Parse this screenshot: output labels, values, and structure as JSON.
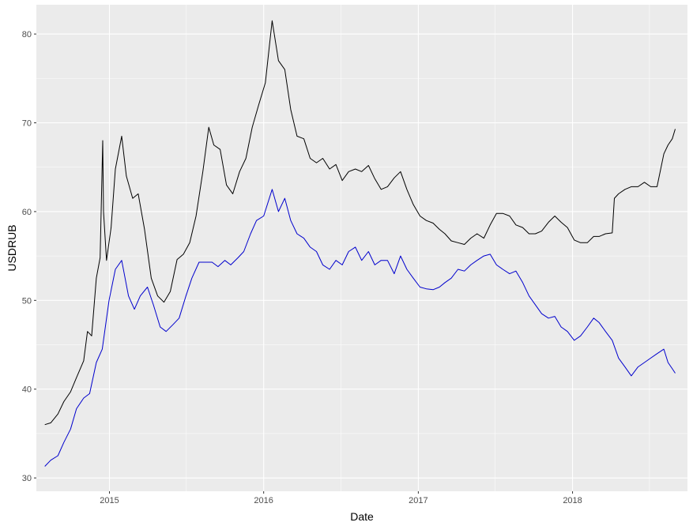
{
  "chart_data": {
    "type": "line",
    "title": "",
    "xlabel": "Date",
    "ylabel": "USDRUB",
    "grid": true,
    "legend": "none",
    "xlim": [
      "2014-07-12",
      "2018-09-30"
    ],
    "ylim": [
      28.5,
      83.3
    ],
    "x_ticks": [
      "2015-01-01",
      "2016-01-01",
      "2017-01-01",
      "2018-01-01"
    ],
    "x_tick_labels": [
      "2015",
      "2016",
      "2017",
      "2018"
    ],
    "y_ticks": [
      30,
      40,
      50,
      60,
      70,
      80
    ],
    "y_tick_labels": [
      "30",
      "40",
      "50",
      "60",
      "70",
      "80"
    ],
    "colors": {
      "panel": "#ebebeb",
      "grid": "#ffffff",
      "series_1": "#000000",
      "series_2": "#0000cd"
    },
    "series": [
      {
        "color": "#000000",
        "x": [
          "2014-08-01",
          "2014-08-15",
          "2014-09-01",
          "2014-09-15",
          "2014-10-01",
          "2014-10-15",
          "2014-11-01",
          "2014-11-10",
          "2014-11-20",
          "2014-12-01",
          "2014-12-10",
          "2014-12-16",
          "2014-12-18",
          "2014-12-25",
          "2015-01-05",
          "2015-01-15",
          "2015-01-30",
          "2015-02-10",
          "2015-02-25",
          "2015-03-10",
          "2015-03-25",
          "2015-04-10",
          "2015-04-25",
          "2015-05-10",
          "2015-05-25",
          "2015-06-10",
          "2015-06-25",
          "2015-07-10",
          "2015-07-25",
          "2015-08-10",
          "2015-08-24",
          "2015-09-05",
          "2015-09-20",
          "2015-10-05",
          "2015-10-20",
          "2015-11-05",
          "2015-11-20",
          "2015-12-05",
          "2015-12-20",
          "2016-01-05",
          "2016-01-21",
          "2016-02-05",
          "2016-02-20",
          "2016-03-05",
          "2016-03-20",
          "2016-04-05",
          "2016-04-20",
          "2016-05-05",
          "2016-05-20",
          "2016-06-05",
          "2016-06-20",
          "2016-07-05",
          "2016-07-20",
          "2016-08-05",
          "2016-08-20",
          "2016-09-05",
          "2016-09-20",
          "2016-10-05",
          "2016-10-20",
          "2016-11-05",
          "2016-11-20",
          "2016-12-05",
          "2016-12-20",
          "2017-01-05",
          "2017-01-20",
          "2017-02-05",
          "2017-02-20",
          "2017-03-05",
          "2017-03-20",
          "2017-04-05",
          "2017-04-20",
          "2017-05-05",
          "2017-05-20",
          "2017-06-05",
          "2017-06-20",
          "2017-07-05",
          "2017-07-20",
          "2017-08-05",
          "2017-08-20",
          "2017-09-05",
          "2017-09-20",
          "2017-10-05",
          "2017-10-20",
          "2017-11-05",
          "2017-11-20",
          "2017-12-05",
          "2017-12-20",
          "2018-01-05",
          "2018-01-20",
          "2018-02-05",
          "2018-02-20",
          "2018-03-05",
          "2018-03-20",
          "2018-04-05",
          "2018-04-10",
          "2018-04-20",
          "2018-05-05",
          "2018-05-20",
          "2018-06-05",
          "2018-06-20",
          "2018-07-05",
          "2018-07-20",
          "2018-08-05",
          "2018-08-15",
          "2018-08-25",
          "2018-09-01"
        ],
        "values": [
          36.0,
          36.2,
          37.2,
          38.6,
          39.7,
          41.3,
          43.2,
          46.5,
          46.0,
          52.5,
          54.8,
          68.0,
          60.0,
          54.5,
          58.2,
          64.8,
          68.5,
          64.0,
          61.5,
          62.0,
          58.0,
          52.5,
          50.5,
          49.8,
          51.0,
          54.6,
          55.2,
          56.5,
          59.5,
          64.5,
          69.5,
          67.5,
          67.0,
          63.0,
          62.0,
          64.5,
          66.0,
          69.5,
          72.0,
          74.5,
          81.5,
          77.0,
          76.0,
          71.5,
          68.5,
          68.2,
          66.0,
          65.5,
          66.0,
          64.8,
          65.3,
          63.5,
          64.5,
          64.8,
          64.5,
          65.2,
          63.7,
          62.5,
          62.8,
          63.8,
          64.5,
          62.5,
          60.8,
          59.5,
          59.0,
          58.7,
          58.0,
          57.5,
          56.7,
          56.5,
          56.3,
          57.0,
          57.5,
          57.0,
          58.5,
          59.8,
          59.8,
          59.5,
          58.5,
          58.2,
          57.5,
          57.5,
          57.8,
          58.8,
          59.5,
          58.8,
          58.2,
          56.8,
          56.5,
          56.5,
          57.2,
          57.2,
          57.5,
          57.6,
          61.5,
          62.0,
          62.5,
          62.8,
          62.8,
          63.3,
          62.8,
          62.8,
          66.5,
          67.5,
          68.2,
          69.3
        ]
      },
      {
        "color": "#0000cd",
        "x": [
          "2014-08-01",
          "2014-08-15",
          "2014-09-01",
          "2014-09-15",
          "2014-10-01",
          "2014-10-15",
          "2014-11-01",
          "2014-11-15",
          "2014-12-01",
          "2014-12-15",
          "2014-12-31",
          "2015-01-15",
          "2015-01-30",
          "2015-02-15",
          "2015-03-01",
          "2015-03-15",
          "2015-04-01",
          "2015-04-15",
          "2015-05-01",
          "2015-05-15",
          "2015-06-01",
          "2015-06-15",
          "2015-07-01",
          "2015-07-15",
          "2015-08-01",
          "2015-08-15",
          "2015-09-01",
          "2015-09-15",
          "2015-10-01",
          "2015-10-15",
          "2015-11-01",
          "2015-11-15",
          "2015-12-01",
          "2015-12-15",
          "2016-01-01",
          "2016-01-21",
          "2016-02-05",
          "2016-02-20",
          "2016-03-05",
          "2016-03-20",
          "2016-04-05",
          "2016-04-20",
          "2016-05-05",
          "2016-05-20",
          "2016-06-05",
          "2016-06-20",
          "2016-07-05",
          "2016-07-20",
          "2016-08-05",
          "2016-08-20",
          "2016-09-05",
          "2016-09-20",
          "2016-10-05",
          "2016-10-20",
          "2016-11-05",
          "2016-11-20",
          "2016-12-05",
          "2016-12-20",
          "2017-01-05",
          "2017-01-20",
          "2017-02-05",
          "2017-02-20",
          "2017-03-05",
          "2017-03-20",
          "2017-04-05",
          "2017-04-20",
          "2017-05-05",
          "2017-05-20",
          "2017-06-05",
          "2017-06-20",
          "2017-07-05",
          "2017-07-20",
          "2017-08-05",
          "2017-08-20",
          "2017-09-05",
          "2017-09-20",
          "2017-10-05",
          "2017-10-20",
          "2017-11-05",
          "2017-11-20",
          "2017-12-05",
          "2017-12-20",
          "2018-01-05",
          "2018-01-20",
          "2018-02-05",
          "2018-02-20",
          "2018-03-05",
          "2018-03-20",
          "2018-04-05",
          "2018-04-20",
          "2018-05-05",
          "2018-05-20",
          "2018-06-05",
          "2018-06-20",
          "2018-07-05",
          "2018-07-20",
          "2018-08-05",
          "2018-08-15",
          "2018-08-25",
          "2018-09-01"
        ],
        "values": [
          31.3,
          32.0,
          32.5,
          34.0,
          35.5,
          37.8,
          39.0,
          39.5,
          43.0,
          44.5,
          50.0,
          53.5,
          54.5,
          50.5,
          49.0,
          50.5,
          51.5,
          49.5,
          47.0,
          46.5,
          47.3,
          48.0,
          50.5,
          52.5,
          54.3,
          54.3,
          54.3,
          53.8,
          54.5,
          54.0,
          54.8,
          55.5,
          57.5,
          59.0,
          59.5,
          62.5,
          60.0,
          61.5,
          59.0,
          57.5,
          57.0,
          56.0,
          55.5,
          54.0,
          53.5,
          54.5,
          54.0,
          55.5,
          56.0,
          54.5,
          55.5,
          54.0,
          54.5,
          54.5,
          53.0,
          55.0,
          53.5,
          52.5,
          51.5,
          51.3,
          51.2,
          51.5,
          52.0,
          52.5,
          53.5,
          53.3,
          54.0,
          54.5,
          55.0,
          55.2,
          54.0,
          53.5,
          53.0,
          53.3,
          52.0,
          50.5,
          49.5,
          48.5,
          48.0,
          48.2,
          47.0,
          46.5,
          45.5,
          46.0,
          47.0,
          48.0,
          47.5,
          46.5,
          45.5,
          43.5,
          42.5,
          41.5,
          42.5,
          43.0,
          43.5,
          44.0,
          44.5,
          43.0,
          42.3,
          41.8
        ]
      }
    ]
  }
}
